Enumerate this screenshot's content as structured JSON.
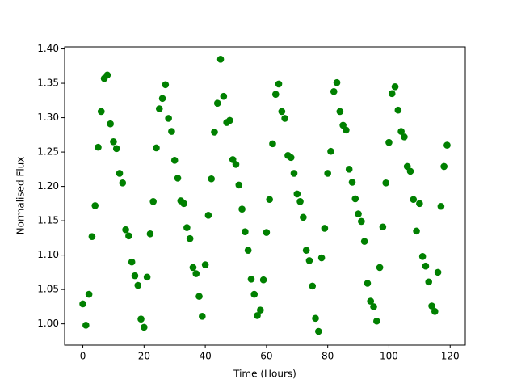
{
  "chart_data": {
    "type": "scatter",
    "xlabel": "Time (Hours)",
    "ylabel": "Normalised Flux",
    "color": "#008000",
    "x": [
      0,
      1,
      2,
      3,
      4,
      5,
      6,
      7,
      8,
      9,
      10,
      11,
      12,
      13,
      14,
      15,
      16,
      17,
      18,
      19,
      20,
      21,
      22,
      23,
      24,
      25,
      26,
      27,
      28,
      29,
      30,
      31,
      32,
      33,
      34,
      35,
      36,
      37,
      38,
      39,
      40,
      41,
      42,
      43,
      44,
      45,
      46,
      47,
      48,
      49,
      50,
      51,
      52,
      53,
      54,
      55,
      56,
      57,
      58,
      59,
      60,
      61,
      62,
      63,
      64,
      65,
      66,
      67,
      68,
      69,
      70,
      71,
      72,
      73,
      74,
      75,
      76,
      77,
      78,
      79,
      80,
      81,
      82,
      83,
      84,
      85,
      86,
      87,
      88,
      89,
      90,
      91,
      92,
      93,
      94,
      95,
      96,
      97,
      98,
      99,
      100,
      101,
      102,
      103,
      104,
      105,
      106,
      107,
      108,
      109,
      110,
      111,
      112,
      113,
      114,
      115,
      116,
      117,
      118,
      119
    ],
    "values": [
      1.029,
      0.998,
      1.043,
      1.127,
      1.172,
      1.257,
      1.309,
      1.357,
      1.362,
      1.291,
      1.265,
      1.255,
      1.219,
      1.205,
      1.137,
      1.128,
      1.09,
      1.07,
      1.056,
      1.007,
      0.995,
      1.068,
      1.131,
      1.178,
      1.256,
      1.313,
      1.328,
      1.348,
      1.299,
      1.28,
      1.238,
      1.212,
      1.179,
      1.175,
      1.14,
      1.124,
      1.082,
      1.073,
      1.04,
      1.011,
      1.086,
      1.158,
      1.211,
      1.279,
      1.321,
      1.385,
      1.331,
      1.293,
      1.296,
      1.239,
      1.232,
      1.202,
      1.167,
      1.134,
      1.107,
      1.065,
      1.043,
      1.012,
      1.02,
      1.064,
      1.133,
      1.181,
      1.262,
      1.334,
      1.349,
      1.309,
      1.299,
      1.245,
      1.242,
      1.219,
      1.189,
      1.178,
      1.155,
      1.107,
      1.092,
      1.055,
      1.008,
      0.989,
      1.096,
      1.139,
      1.219,
      1.251,
      1.338,
      1.351,
      1.309,
      1.289,
      1.282,
      1.225,
      1.206,
      1.182,
      1.16,
      1.149,
      1.12,
      1.059,
      1.033,
      1.025,
      1.004,
      1.082,
      1.141,
      1.205,
      1.264,
      1.335,
      1.345,
      1.311,
      1.28,
      1.272,
      1.229,
      1.222,
      1.181,
      1.135,
      1.175,
      1.098,
      1.084,
      1.061,
      1.026,
      1.018,
      1.075,
      1.171,
      1.229,
      1.26
    ],
    "xlim": [
      -5.95,
      124.95
    ],
    "ylim": [
      0.969,
      1.403
    ],
    "xticks": [
      0,
      20,
      40,
      60,
      80,
      100,
      120
    ],
    "yticks": [
      {
        "value": 1.0,
        "label": "1.00"
      },
      {
        "value": 1.05,
        "label": "1.05"
      },
      {
        "value": 1.1,
        "label": "1.10"
      },
      {
        "value": 1.15,
        "label": "1.15"
      },
      {
        "value": 1.2,
        "label": "1.20"
      },
      {
        "value": 1.25,
        "label": "1.25"
      },
      {
        "value": 1.3,
        "label": "1.30"
      },
      {
        "value": 1.35,
        "label": "1.35"
      },
      {
        "value": 1.4,
        "label": "1.40"
      }
    ],
    "grid": false
  }
}
